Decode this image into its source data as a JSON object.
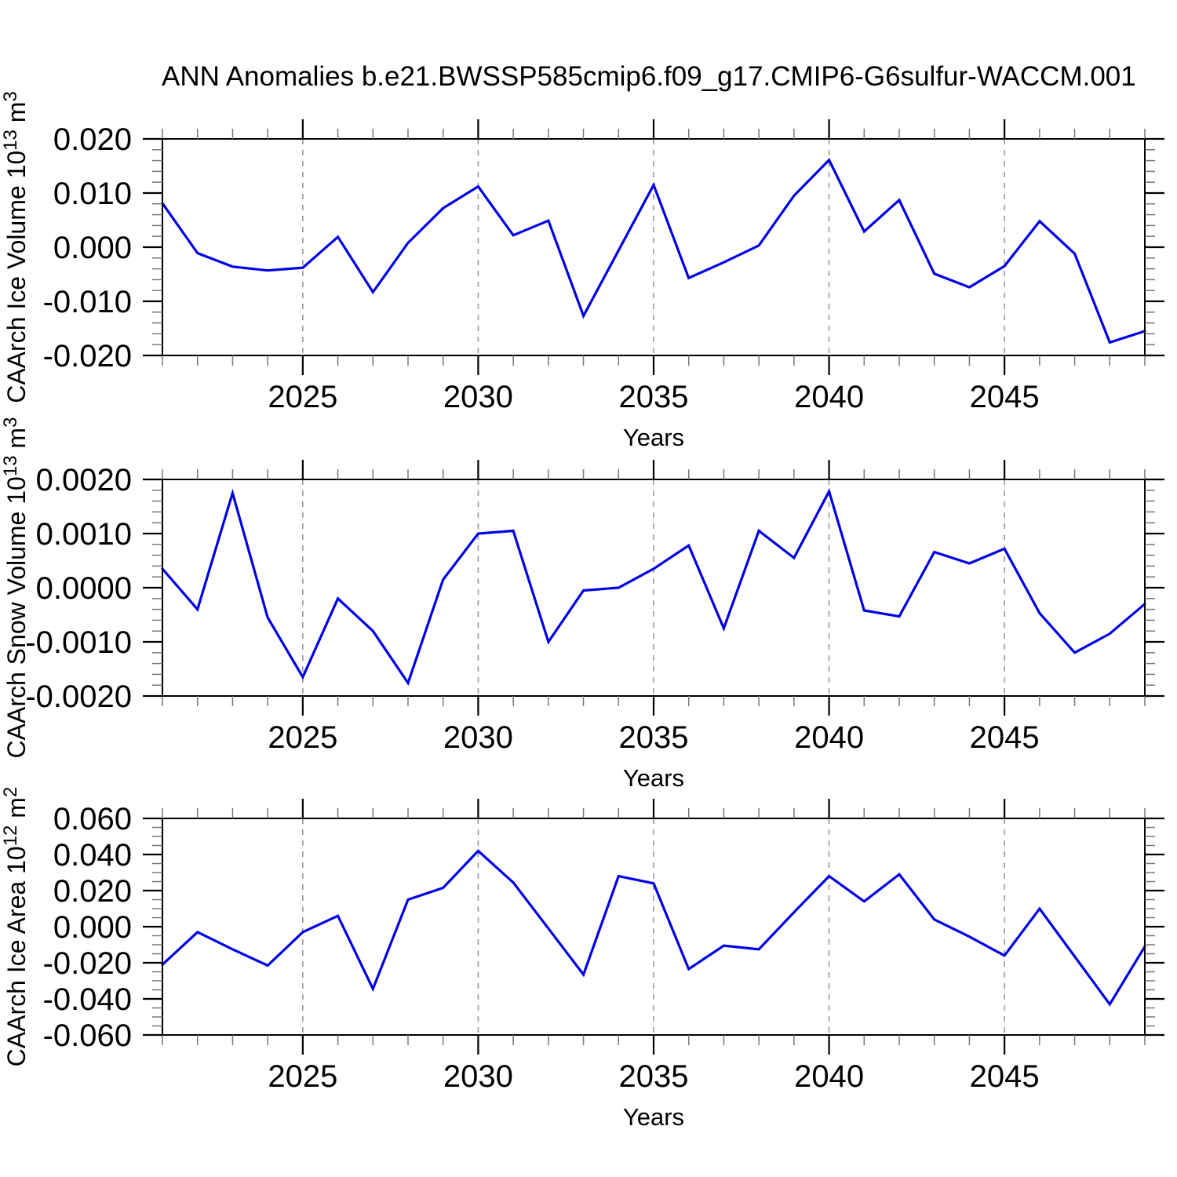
{
  "title": "ANN Anomalies b.e21.BWSSP585cmip6.f09_g17.CMIP6-G6sulfur-WACCM.001",
  "colors": {
    "line": "#0000e6",
    "grid": "#999999",
    "frame": "#000000",
    "minor_tick": "#777777",
    "major_tick": "#000000",
    "text": "#000000",
    "background": "#ffffff"
  },
  "xlabel": "Years",
  "chart_data": [
    {
      "type": "line",
      "name": "ice-volume",
      "ylabel_text": "CAArch Ice Volume 10^13 m^3",
      "ylabel_parts": [
        {
          "t": "CAArch Ice Volume 10"
        },
        {
          "t": "13",
          "sup": true
        },
        {
          "t": " m"
        },
        {
          "t": "3",
          "sup": true
        }
      ],
      "xlabel": "Years",
      "xlim": [
        2021,
        2049
      ],
      "ylim": [
        -0.02,
        0.02
      ],
      "xtick_major": [
        2025,
        2030,
        2035,
        2040,
        2045
      ],
      "xtick_labels": [
        "2025",
        "2030",
        "2035",
        "2040",
        "2045"
      ],
      "xtick_minor_step": 1,
      "ytick_major": [
        0.02,
        0.01,
        0.0,
        -0.01,
        -0.02
      ],
      "ytick_labels": [
        "0.020",
        "0.010",
        "0.000",
        "-0.010",
        "-0.020"
      ],
      "ytick_minor_step": 0.002,
      "grid": "vertical-dashed",
      "x": [
        2021,
        2022,
        2023,
        2024,
        2025,
        2026,
        2027,
        2028,
        2029,
        2030,
        2031,
        2032,
        2033,
        2034,
        2035,
        2036,
        2037,
        2038,
        2039,
        2040,
        2041,
        2042,
        2043,
        2044,
        2045,
        2046,
        2047,
        2048,
        2049
      ],
      "values": [
        0.0081,
        -0.0011,
        -0.0036,
        -0.0043,
        -0.0038,
        0.0019,
        -0.0083,
        0.0008,
        0.0072,
        0.0112,
        0.0022,
        0.0049,
        -0.0127,
        -0.0006,
        0.0115,
        -0.0057,
        -0.0028,
        0.0003,
        0.0095,
        0.0161,
        0.0029,
        0.0087,
        -0.0049,
        -0.0074,
        -0.0035,
        0.0048,
        -0.0012,
        -0.0176,
        -0.0155
      ]
    },
    {
      "type": "line",
      "name": "snow-volume",
      "ylabel_text": "CAArch Snow Volume 10^13 m^3",
      "ylabel_parts": [
        {
          "t": "CAArch Snow Volume 10"
        },
        {
          "t": "13",
          "sup": true
        },
        {
          "t": " m"
        },
        {
          "t": "3",
          "sup": true
        }
      ],
      "xlabel": "Years",
      "xlim": [
        2021,
        2049
      ],
      "ylim": [
        -0.002,
        0.002
      ],
      "xtick_major": [
        2025,
        2030,
        2035,
        2040,
        2045
      ],
      "xtick_labels": [
        "2025",
        "2030",
        "2035",
        "2040",
        "2045"
      ],
      "xtick_minor_step": 1,
      "ytick_major": [
        0.002,
        0.001,
        0.0,
        -0.001,
        -0.002
      ],
      "ytick_labels": [
        "0.0020",
        "0.0010",
        "0.0000",
        "-0.0010",
        "-0.0020"
      ],
      "ytick_minor_step": 0.0002,
      "grid": "vertical-dashed",
      "x": [
        2021,
        2022,
        2023,
        2024,
        2025,
        2026,
        2027,
        2028,
        2029,
        2030,
        2031,
        2032,
        2033,
        2034,
        2035,
        2036,
        2037,
        2038,
        2039,
        2040,
        2041,
        2042,
        2043,
        2044,
        2045,
        2046,
        2047,
        2048,
        2049
      ],
      "values": [
        0.00035,
        -0.0004,
        0.00175,
        -0.00055,
        -0.00165,
        -0.0002,
        -0.0008,
        -0.00176,
        0.00015,
        0.001,
        0.00105,
        -0.001,
        -5e-05,
        0.0,
        0.00035,
        0.00078,
        -0.00075,
        0.00105,
        0.00055,
        0.00178,
        -0.00042,
        -0.00053,
        0.00066,
        0.00045,
        0.00072,
        -0.00047,
        -0.0012,
        -0.00085,
        -0.0003
      ]
    },
    {
      "type": "line",
      "name": "ice-area",
      "ylabel_text": "CAArch Ice Area 10^12 m^2",
      "ylabel_parts": [
        {
          "t": "CAArch Ice Area 10"
        },
        {
          "t": "12",
          "sup": true
        },
        {
          "t": " m"
        },
        {
          "t": "2",
          "sup": true
        }
      ],
      "xlabel": "Years",
      "xlim": [
        2021,
        2049
      ],
      "ylim": [
        -0.06,
        0.06
      ],
      "xtick_major": [
        2025,
        2030,
        2035,
        2040,
        2045
      ],
      "xtick_labels": [
        "2025",
        "2030",
        "2035",
        "2040",
        "2045"
      ],
      "xtick_minor_step": 1,
      "ytick_major": [
        0.06,
        0.04,
        0.02,
        0.0,
        -0.02,
        -0.04,
        -0.06
      ],
      "ytick_labels": [
        "0.060",
        "0.040",
        "0.020",
        "0.000",
        "-0.020",
        "-0.040",
        "-0.060"
      ],
      "ytick_minor_step": 0.005,
      "grid": "vertical-dashed",
      "x": [
        2021,
        2022,
        2023,
        2024,
        2025,
        2026,
        2027,
        2028,
        2029,
        2030,
        2031,
        2032,
        2033,
        2034,
        2035,
        2036,
        2037,
        2038,
        2039,
        2040,
        2041,
        2042,
        2043,
        2044,
        2045,
        2046,
        2047,
        2048,
        2049
      ],
      "values": [
        -0.021,
        -0.003,
        -0.0125,
        -0.0215,
        -0.003,
        0.006,
        -0.0345,
        0.015,
        0.0215,
        0.042,
        0.0245,
        -0.001,
        -0.0265,
        0.028,
        0.024,
        -0.0235,
        -0.0105,
        -0.0125,
        0.008,
        0.028,
        0.014,
        0.029,
        0.004,
        -0.0055,
        -0.016,
        0.01,
        -0.0165,
        -0.043,
        -0.011
      ]
    }
  ]
}
